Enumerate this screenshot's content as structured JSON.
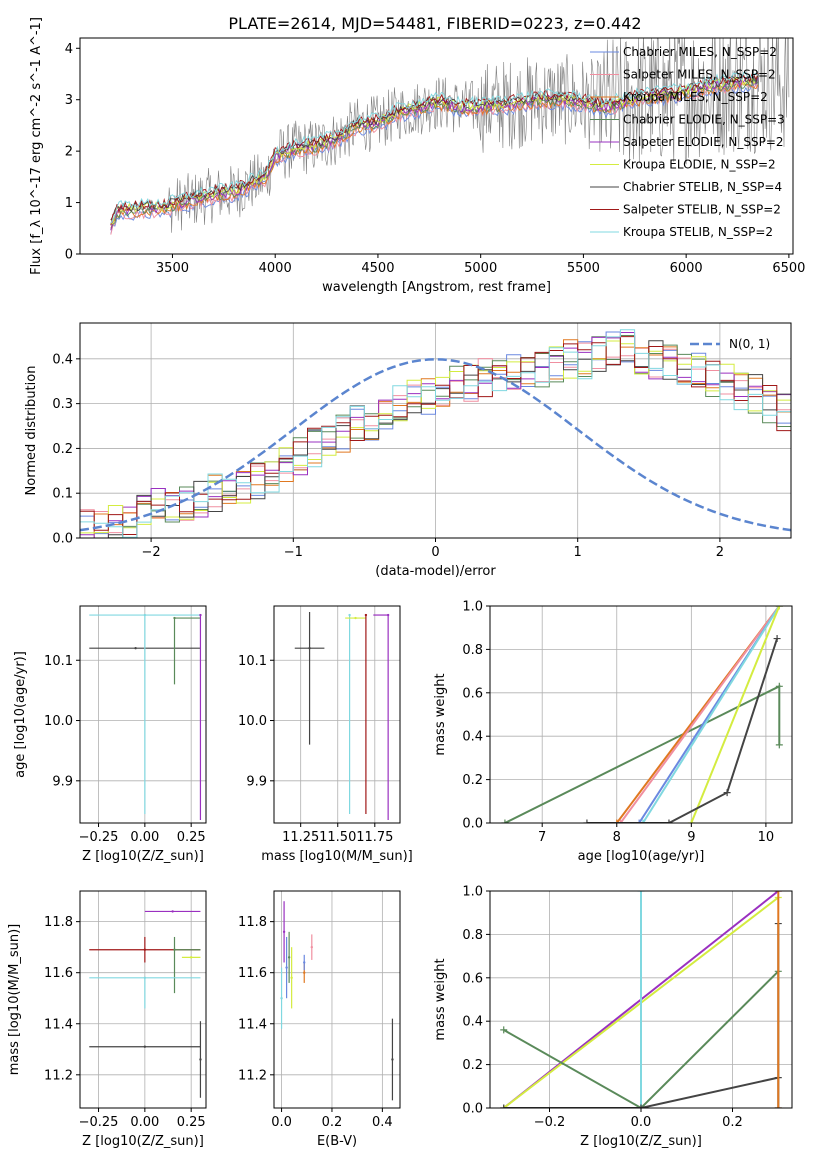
{
  "figure_title": "PLATE=2614, MJD=54481, FIBERID=0223, z=0.442",
  "colors": {
    "Chabrier MILES": "#6a88e0",
    "Salpeter MILES": "#f08fa0",
    "Kroupa MILES": "#e07820",
    "Chabrier ELODIE": "#5a8a5a",
    "Salpeter ELODIE": "#9a30c0",
    "Kroupa ELODIE": "#d4ec40",
    "Chabrier STELIB": "#444444",
    "Salpeter STELIB": "#a01818",
    "Kroupa STELIB": "#80d8e0",
    "data": "#808080",
    "gaussian": "#5b85cf"
  },
  "chart_data": [
    {
      "id": "spectrum",
      "type": "line",
      "title": "PLATE=2614, MJD=54481, FIBERID=0223, z=0.442",
      "xlabel": "wavelength [Angstrom, rest frame]",
      "ylabel": "Flux [f_λ 10^-17 erg cm^-2 s^-1 A^-1]",
      "xlim": [
        3050,
        6520
      ],
      "ylim": [
        0,
        4.2
      ],
      "xticks": [
        3500,
        4000,
        4500,
        5000,
        5500,
        6000,
        6500
      ],
      "yticks": [
        0,
        1,
        2,
        3,
        4
      ],
      "legend_position": "top-right",
      "series": [
        {
          "name": "Chabrier MILES",
          "label": "Chabrier MILES, N_SSP=2"
        },
        {
          "name": "Salpeter MILES",
          "label": "Salpeter MILES, N_SSP=2"
        },
        {
          "name": "Kroupa MILES",
          "label": "Kroupa MILES, N_SSP=2"
        },
        {
          "name": "Chabrier ELODIE",
          "label": "Chabrier ELODIE, N_SSP=3"
        },
        {
          "name": "Salpeter ELODIE",
          "label": "Salpeter ELODIE, N_SSP=2"
        },
        {
          "name": "Kroupa ELODIE",
          "label": "Kroupa ELODIE, N_SSP=2"
        },
        {
          "name": "Chabrier STELIB",
          "label": "Chabrier STELIB, N_SSP=4"
        },
        {
          "name": "Salpeter STELIB",
          "label": "Salpeter STELIB, N_SSP=2"
        },
        {
          "name": "Kroupa STELIB",
          "label": "Kroupa STELIB, N_SSP=2"
        }
      ],
      "model_curve": {
        "x": [
          3200,
          3230,
          3260,
          3300,
          3400,
          3480,
          3500,
          3600,
          3700,
          3800,
          3850,
          3900,
          3950,
          4000,
          4100,
          4200,
          4300,
          4400,
          4500,
          4600,
          4700,
          4800,
          4900,
          5000,
          5100,
          5200,
          5300,
          5400,
          5500,
          5600,
          5700,
          5800,
          5900,
          6000,
          6100,
          6200,
          6300
        ],
        "y": [
          0.55,
          0.8,
          0.85,
          0.86,
          0.88,
          0.9,
          0.95,
          1.05,
          1.15,
          1.2,
          1.3,
          1.4,
          1.45,
          1.9,
          2.05,
          2.1,
          2.25,
          2.5,
          2.55,
          2.75,
          2.85,
          2.95,
          2.85,
          2.85,
          2.9,
          2.95,
          3.0,
          3.0,
          2.95,
          2.85,
          2.95,
          3.05,
          3.1,
          3.15,
          3.25,
          3.3,
          3.35
        ]
      }
    },
    {
      "id": "residuals",
      "type": "histogram",
      "xlabel": "(data-model)/error",
      "ylabel": "Normed distribution",
      "xlim": [
        -2.5,
        2.5
      ],
      "ylim": [
        0,
        0.48
      ],
      "xticks": [
        -2,
        -1,
        0,
        1,
        2
      ],
      "yticks": [
        0.0,
        0.1,
        0.2,
        0.3,
        0.4
      ],
      "gaussian_label": "N(0, 1)",
      "bin_width": 0.1,
      "envelope": [
        0.02,
        0.02,
        0.03,
        0.04,
        0.06,
        0.07,
        0.08,
        0.08,
        0.09,
        0.1,
        0.11,
        0.12,
        0.13,
        0.14,
        0.16,
        0.18,
        0.2,
        0.21,
        0.23,
        0.25,
        0.26,
        0.28,
        0.3,
        0.31,
        0.32,
        0.33,
        0.34,
        0.35,
        0.36,
        0.37,
        0.37,
        0.38,
        0.38,
        0.39,
        0.4,
        0.4,
        0.41,
        0.42,
        0.42,
        0.41,
        0.4,
        0.39,
        0.38,
        0.37,
        0.36,
        0.35,
        0.33,
        0.32,
        0.3,
        0.28,
        0.26,
        0.24,
        0.22,
        0.2,
        0.18,
        0.16,
        0.14,
        0.12,
        0.1,
        0.09,
        0.08,
        0.07,
        0.06,
        0.05,
        0.05,
        0.05,
        0.04,
        0.04,
        0.03,
        0.03
      ]
    },
    {
      "id": "age_vs_Z",
      "type": "scatter",
      "xlabel": "Z [log10(Z/Z_sun)]",
      "ylabel": "age [log10(age/yr)]",
      "xlim": [
        -0.35,
        0.33
      ],
      "ylim": [
        9.83,
        10.19
      ],
      "xticks": [
        -0.25,
        0.0,
        0.25
      ],
      "yticks": [
        9.9,
        10.0,
        10.1
      ],
      "points": [
        {
          "series": "Chabrier STELIB",
          "x": -0.05,
          "y": 10.12,
          "xerr": [
            0.25,
            0.35
          ],
          "yerr": [
            0.0,
            0.0
          ]
        },
        {
          "series": "Kroupa STELIB",
          "x": 0.0,
          "y": 10.175,
          "xerr": [
            0.3,
            0.3
          ],
          "yerr": [
            0.33,
            0.0
          ]
        },
        {
          "series": "Chabrier ELODIE",
          "x": 0.16,
          "y": 10.17,
          "xerr": [
            0.0,
            0.14
          ],
          "yerr": [
            0.11,
            0.0
          ]
        },
        {
          "series": "Salpeter ELODIE",
          "x": 0.3,
          "y": 10.175,
          "xerr": [
            0.0,
            0.0
          ],
          "yerr": [
            0.34,
            0.0
          ]
        }
      ]
    },
    {
      "id": "age_vs_mass",
      "type": "scatter",
      "xlabel": "mass [log10(M/M_sun)]",
      "ylabel": "",
      "xlim": [
        11.07,
        11.92
      ],
      "ylim": [
        9.83,
        10.19
      ],
      "xticks": [
        11.25,
        11.5,
        11.75
      ],
      "yticks": [
        9.9,
        10.0,
        10.1
      ],
      "points": [
        {
          "series": "Chabrier STELIB",
          "x": 11.31,
          "y": 10.12,
          "xerr": [
            0.1,
            0.1
          ],
          "yerr": [
            0.16,
            0.06
          ]
        },
        {
          "series": "Kroupa STELIB",
          "x": 11.58,
          "y": 10.175,
          "xerr": [
            0.0,
            0.0
          ],
          "yerr": [
            0.33,
            0.0
          ]
        },
        {
          "series": "Kroupa ELODIE",
          "x": 11.62,
          "y": 10.17,
          "xerr": [
            0.07,
            0.07
          ],
          "yerr": [
            0.0,
            0.0
          ]
        },
        {
          "series": "Salpeter STELIB",
          "x": 11.69,
          "y": 10.175,
          "xerr": [
            0.0,
            0.0
          ],
          "yerr": [
            0.33,
            0.0
          ]
        },
        {
          "series": "Salpeter ELODIE",
          "x": 11.84,
          "y": 10.175,
          "xerr": [
            0.1,
            0.0
          ],
          "yerr": [
            0.34,
            0.0
          ]
        }
      ]
    },
    {
      "id": "massweight_vs_age",
      "type": "line",
      "xlabel": "age [log10(age/yr)]",
      "ylabel": "mass weight",
      "xlim": [
        6.3,
        10.35
      ],
      "ylim": [
        0,
        1.0
      ],
      "xticks": [
        7,
        8,
        9,
        10
      ],
      "yticks": [
        0.0,
        0.2,
        0.4,
        0.6,
        0.8,
        1.0
      ],
      "series": [
        {
          "name": "Chabrier ELODIE",
          "x": [
            6.5,
            10.18,
            10.18
          ],
          "y": [
            0.0,
            0.63,
            0.36
          ]
        },
        {
          "name": "Kroupa MILES",
          "x": [
            8.0,
            10.18
          ],
          "y": [
            0.0,
            1.0
          ]
        },
        {
          "name": "Salpeter MILES",
          "x": [
            8.05,
            10.18
          ],
          "y": [
            0.0,
            1.0
          ]
        },
        {
          "name": "Chabrier MILES",
          "x": [
            8.3,
            10.18
          ],
          "y": [
            0.0,
            1.0
          ]
        },
        {
          "name": "Kroupa STELIB",
          "x": [
            8.35,
            10.18
          ],
          "y": [
            0.0,
            1.0
          ]
        },
        {
          "name": "Kroupa ELODIE",
          "x": [
            9.0,
            10.18
          ],
          "y": [
            0.0,
            1.0
          ]
        },
        {
          "name": "Chabrier STELIB",
          "x": [
            7.6,
            8.7,
            9.48,
            10.15
          ],
          "y": [
            0.0,
            0.0,
            0.14,
            0.85
          ]
        }
      ]
    },
    {
      "id": "mass_vs_Z",
      "type": "scatter",
      "xlabel": "Z [log10(Z/Z_sun)]",
      "ylabel": "mass [log10(M/M_sun)]",
      "xlim": [
        -0.35,
        0.33
      ],
      "ylim": [
        11.07,
        11.92
      ],
      "xticks": [
        -0.25,
        0.0,
        0.25
      ],
      "yticks": [
        11.2,
        11.4,
        11.6,
        11.8
      ],
      "points": [
        {
          "series": "Salpeter ELODIE",
          "x": 0.15,
          "y": 11.84,
          "xerr": [
            0.15,
            0.15
          ],
          "yerr": [
            0.0,
            0.0
          ]
        },
        {
          "series": "Salpeter STELIB",
          "x": 0.0,
          "y": 11.69,
          "xerr": [
            0.3,
            0.3
          ],
          "yerr": [
            0.05,
            0.05
          ]
        },
        {
          "series": "Chabrier ELODIE",
          "x": 0.16,
          "y": 11.69,
          "xerr": [
            0.0,
            0.14
          ],
          "yerr": [
            0.17,
            0.05
          ]
        },
        {
          "series": "Kroupa ELODIE",
          "x": 0.25,
          "y": 11.66,
          "xerr": [
            0.05,
            0.05
          ],
          "yerr": [
            0.0,
            0.0
          ]
        },
        {
          "series": "Kroupa STELIB",
          "x": 0.0,
          "y": 11.58,
          "xerr": [
            0.3,
            0.3
          ],
          "yerr": [
            0.12,
            0.0
          ]
        },
        {
          "series": "Chabrier STELIB",
          "x": 0.0,
          "y": 11.31,
          "xerr": [
            0.3,
            0.3
          ],
          "yerr": [
            0.0,
            0.0
          ]
        },
        {
          "series": "Chabrier STELIB",
          "x": 0.3,
          "y": 11.26,
          "xerr": [
            0.0,
            0.0
          ],
          "yerr": [
            0.15,
            0.15
          ]
        }
      ]
    },
    {
      "id": "mass_vs_EBV",
      "type": "scatter",
      "xlabel": "E(B-V)",
      "ylabel": "",
      "xlim": [
        -0.03,
        0.47
      ],
      "ylim": [
        11.07,
        11.92
      ],
      "xticks": [
        0.0,
        0.2,
        0.4
      ],
      "yticks": [
        11.2,
        11.4,
        11.6,
        11.8
      ],
      "points": [
        {
          "series": "Salpeter ELODIE",
          "x": 0.01,
          "y": 11.76,
          "yerr": [
            0.12,
            0.12
          ]
        },
        {
          "series": "Chabrier MILES",
          "x": 0.02,
          "y": 11.62,
          "yerr": [
            0.12,
            0.12
          ]
        },
        {
          "series": "Chabrier ELODIE",
          "x": 0.03,
          "y": 11.66,
          "yerr": [
            0.1,
            0.1
          ]
        },
        {
          "series": "Kroupa ELODIE",
          "x": 0.04,
          "y": 11.58,
          "yerr": [
            0.12,
            0.12
          ]
        },
        {
          "series": "Kroupa STELIB",
          "x": 0.0,
          "y": 11.5,
          "yerr": [
            0.12,
            0.12
          ]
        },
        {
          "series": "Kroupa MILES",
          "x": 0.09,
          "y": 11.6,
          "yerr": [
            0.04,
            0.04
          ]
        },
        {
          "series": "Chabrier MILES",
          "x": 0.09,
          "y": 11.64,
          "yerr": [
            0.03,
            0.03
          ]
        },
        {
          "series": "Salpeter MILES",
          "x": 0.12,
          "y": 11.7,
          "yerr": [
            0.05,
            0.05
          ]
        },
        {
          "series": "Chabrier STELIB",
          "x": 0.44,
          "y": 11.26,
          "yerr": [
            0.16,
            0.16
          ]
        }
      ]
    },
    {
      "id": "massweight_vs_Z",
      "type": "line",
      "xlabel": "Z [log10(Z/Z_sun)]",
      "ylabel": "mass weight",
      "xlim": [
        -0.33,
        0.33
      ],
      "ylim": [
        0,
        1.0
      ],
      "xticks": [
        -0.2,
        0.0,
        0.2
      ],
      "yticks": [
        0.0,
        0.2,
        0.4,
        0.6,
        0.8,
        1.0
      ],
      "series": [
        {
          "name": "Salpeter ELODIE",
          "x": [
            -0.3,
            0.3
          ],
          "y": [
            0.0,
            1.0
          ]
        },
        {
          "name": "Kroupa ELODIE",
          "x": [
            -0.3,
            0.3
          ],
          "y": [
            0.0,
            0.97
          ]
        },
        {
          "name": "Kroupa STELIB",
          "x": [
            0.0,
            0.0,
            0.0
          ],
          "y": [
            0.0,
            1.0,
            0.0
          ]
        },
        {
          "name": "Chabrier ELODIE",
          "x": [
            -0.3,
            0.0,
            0.3
          ],
          "y": [
            0.36,
            0.0,
            0.63
          ]
        },
        {
          "name": "Chabrier STELIB",
          "x": [
            -0.3,
            0.0,
            0.3,
            0.3,
            0.3
          ],
          "y": [
            0.0,
            0.0,
            0.14,
            0.0,
            0.85
          ]
        },
        {
          "name": "Kroupa MILES",
          "x": [
            0.3,
            0.3
          ],
          "y": [
            0.0,
            1.0
          ]
        }
      ]
    }
  ]
}
